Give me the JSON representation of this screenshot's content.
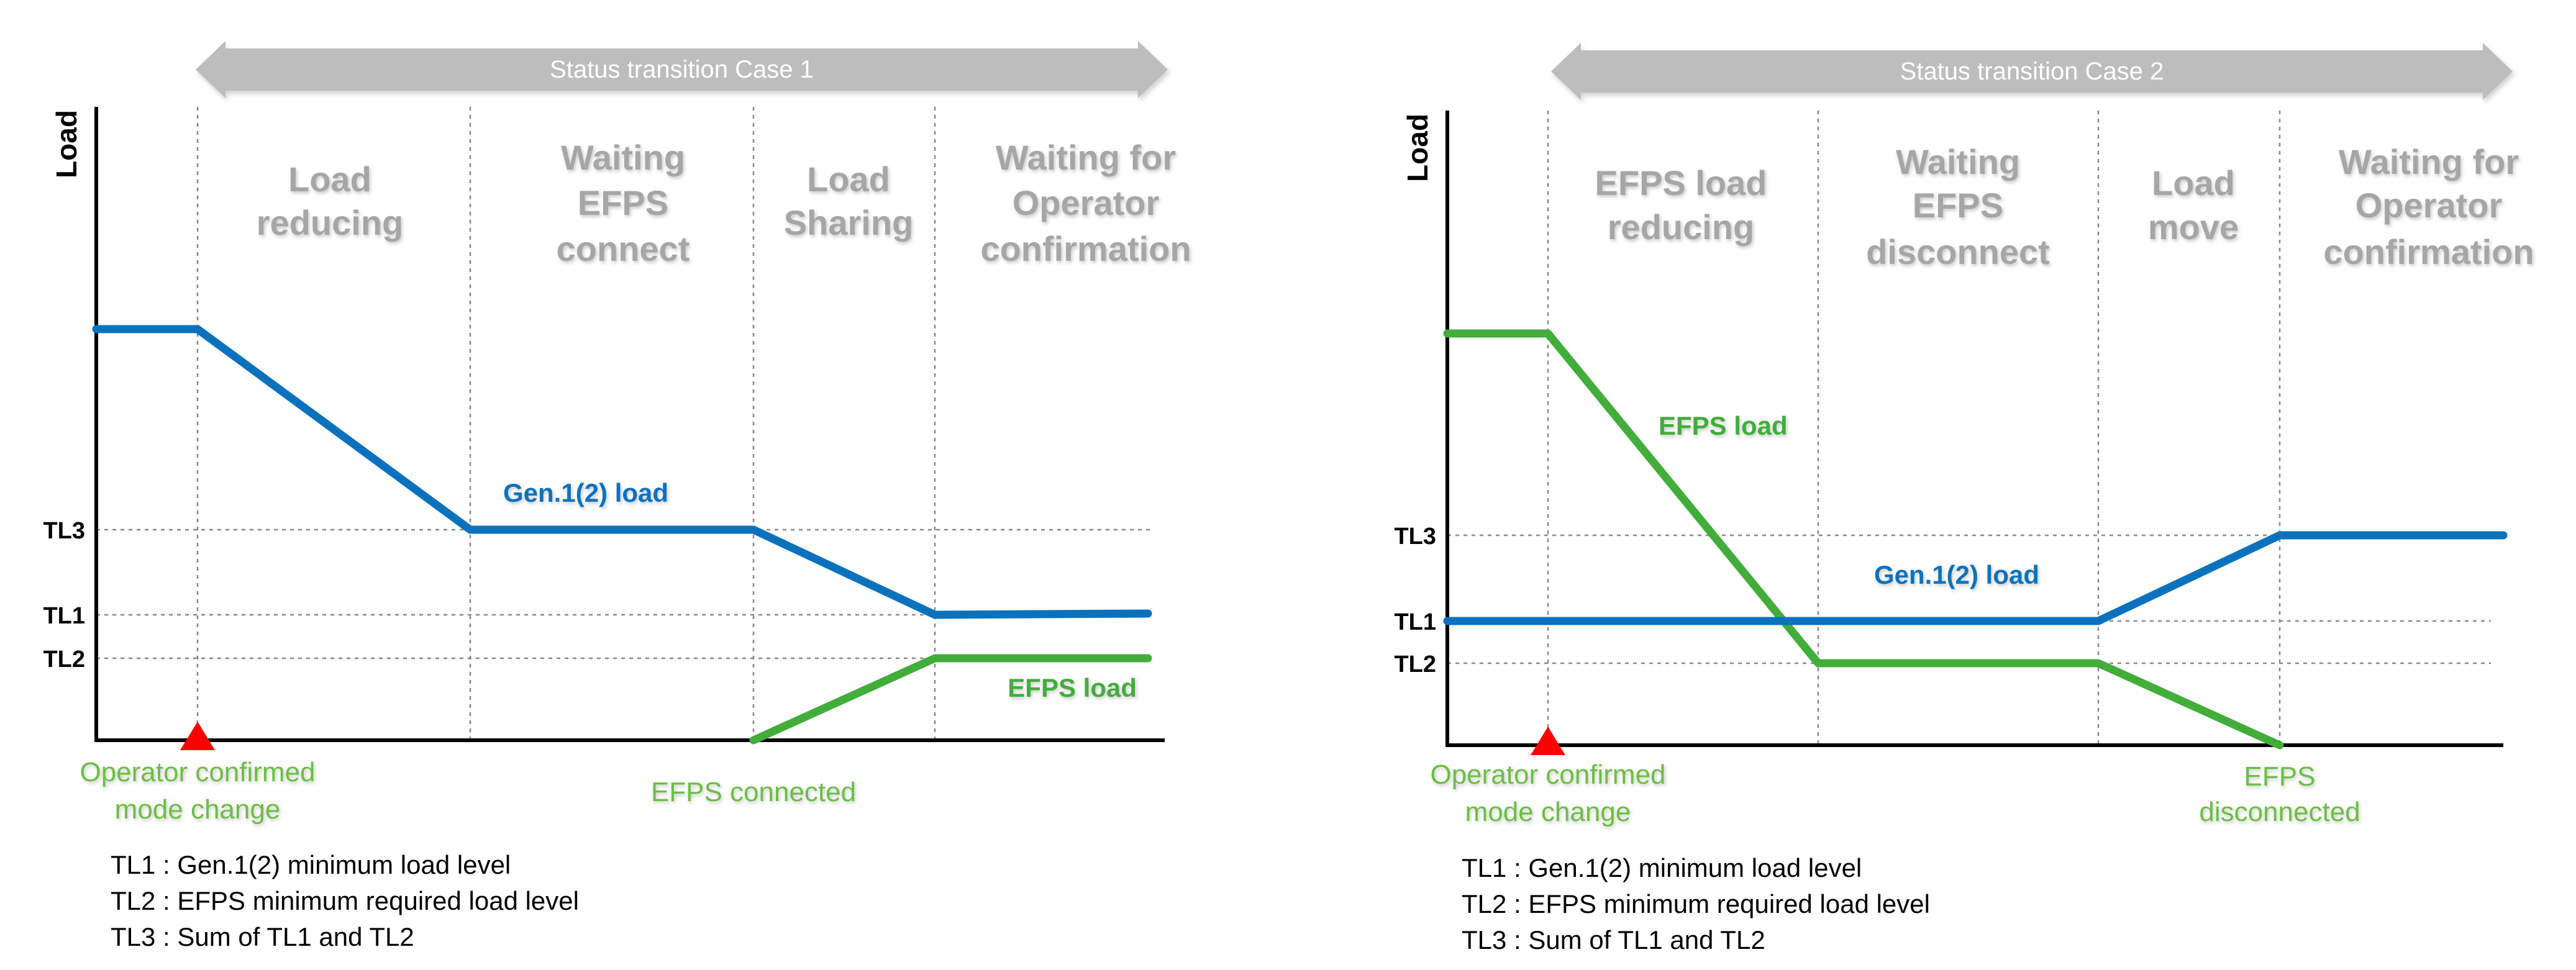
{
  "colors": {
    "gen_line": "#0a72bd",
    "efps_line": "#43ad3c",
    "gen_label": "#0a72bd",
    "efps_label": "#43ad3c",
    "green_text": "#6cbe45",
    "phase_text": "#a6a6a6",
    "banner": "#bdbdbd",
    "axis": "#000000",
    "grid": "#8a8a8a",
    "marker": "#ff0000"
  },
  "diagrams": [
    {
      "banner": "Status transition Case 1",
      "axis_label": "Load",
      "phases": [
        {
          "lines": [
            "Load",
            "reducing"
          ]
        },
        {
          "lines": [
            "Waiting",
            "EFPS",
            "connect"
          ]
        },
        {
          "lines": [
            "Load",
            "Sharing"
          ]
        },
        {
          "lines": [
            "Waiting for",
            "Operator",
            "confirmation"
          ]
        }
      ],
      "levels": [
        {
          "id": "TL3",
          "label": "TL3"
        },
        {
          "id": "TL1",
          "label": "TL1"
        },
        {
          "id": "TL2",
          "label": "TL2"
        }
      ],
      "series": [
        {
          "key": "gen",
          "label": "Gen.1(2) load"
        },
        {
          "key": "efps",
          "label": "EFPS load"
        }
      ],
      "events": [
        {
          "key": "operator",
          "lines": [
            "Operator confirmed",
            "mode change"
          ]
        },
        {
          "key": "efps_event",
          "lines": [
            "EFPS connected"
          ]
        }
      ],
      "legend": [
        "TL1 : Gen.1(2) minimum load level",
        "TL2 : EFPS minimum required load level",
        "TL3 : Sum of TL1 and TL2"
      ]
    },
    {
      "banner": "Status transition Case 2",
      "axis_label": "Load",
      "phases": [
        {
          "lines": [
            "EFPS load",
            "reducing"
          ]
        },
        {
          "lines": [
            "Waiting",
            "EFPS",
            "disconnect"
          ]
        },
        {
          "lines": [
            "Load",
            "move"
          ]
        },
        {
          "lines": [
            "Waiting for",
            "Operator",
            "confirmation"
          ]
        }
      ],
      "levels": [
        {
          "id": "TL3",
          "label": "TL3"
        },
        {
          "id": "TL1",
          "label": "TL1"
        },
        {
          "id": "TL2",
          "label": "TL2"
        }
      ],
      "series": [
        {
          "key": "gen",
          "label": "Gen.1(2) load"
        },
        {
          "key": "efps",
          "label": "EFPS load"
        }
      ],
      "events": [
        {
          "key": "operator",
          "lines": [
            "Operator confirmed",
            "mode change"
          ]
        },
        {
          "key": "efps_event",
          "lines": [
            "EFPS",
            "disconnected"
          ]
        }
      ],
      "legend": [
        "TL1 : Gen.1(2) minimum load level",
        "TL2 : EFPS minimum required load level",
        "TL3 : Sum of TL1 and TL2"
      ]
    }
  ]
}
